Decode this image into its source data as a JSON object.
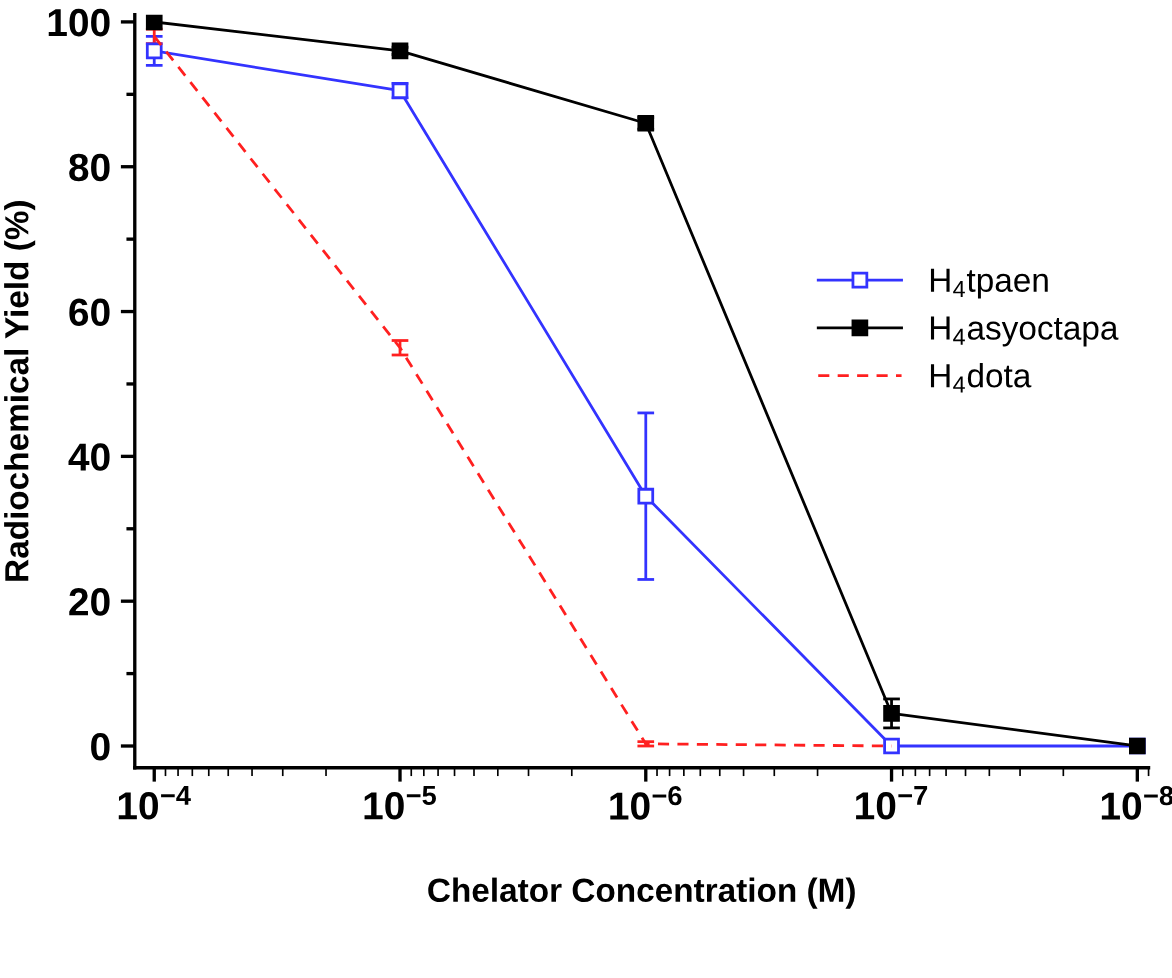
{
  "chart_data": {
    "type": "line",
    "xlabel": "Chelator Concentration (M)",
    "ylabel": "Radiochemical Yield (%)",
    "log": "x",
    "xlim": [
      0.00012,
      9e-09
    ],
    "ylim": [
      -3,
      101
    ],
    "xticks": [
      {
        "value": 0.0001,
        "label": "10$^{−4}$"
      },
      {
        "value": 1e-05,
        "label": "10$^{−5}$"
      },
      {
        "value": 1e-06,
        "label": "10$^{−6}$"
      },
      {
        "value": 1e-07,
        "label": "10$^{−7}$"
      },
      {
        "value": 1e-08,
        "label": "10$^{−8}$"
      }
    ],
    "yticks": [
      0,
      {
        "value": 10,
        "label": null
      },
      20,
      {
        "value": 30,
        "label": null
      },
      40,
      {
        "value": 50,
        "label": null
      },
      60,
      {
        "value": 70,
        "label": null
      },
      80,
      {
        "value": 90,
        "label": null
      },
      100
    ],
    "grid": false,
    "legend": "right",
    "series": [
      {
        "name": "H$_{4}$tpaen",
        "color": "#3333ff",
        "x": [
          0.0001,
          1e-05,
          1e-06,
          1e-07,
          1e-08
        ],
        "values": [
          96,
          90.5,
          34.5,
          0,
          0
        ],
        "errors": [
          2,
          1,
          11.5,
          null,
          null
        ],
        "marker": "square",
        "line_style": "solid"
      },
      {
        "name": "H$_{4}$asyoctapa",
        "color": "#000000",
        "x": [
          0.0001,
          1e-05,
          1e-06,
          1e-07,
          1e-08
        ],
        "values": [
          100,
          96,
          86,
          4.5,
          0
        ],
        "errors": [
          null,
          0.5,
          0.8,
          2,
          null
        ],
        "marker": "square",
        "line_style": "solid"
      },
      {
        "name": "H$_{4}$dota",
        "color": "#ff2020",
        "x": [
          0.0001,
          1e-05,
          1e-06,
          1e-07
        ],
        "values": [
          98,
          55,
          0.3,
          0
        ],
        "errors": [
          1,
          1,
          0.3,
          null
        ],
        "marker": "none",
        "line_style": "dashed"
      }
    ]
  }
}
